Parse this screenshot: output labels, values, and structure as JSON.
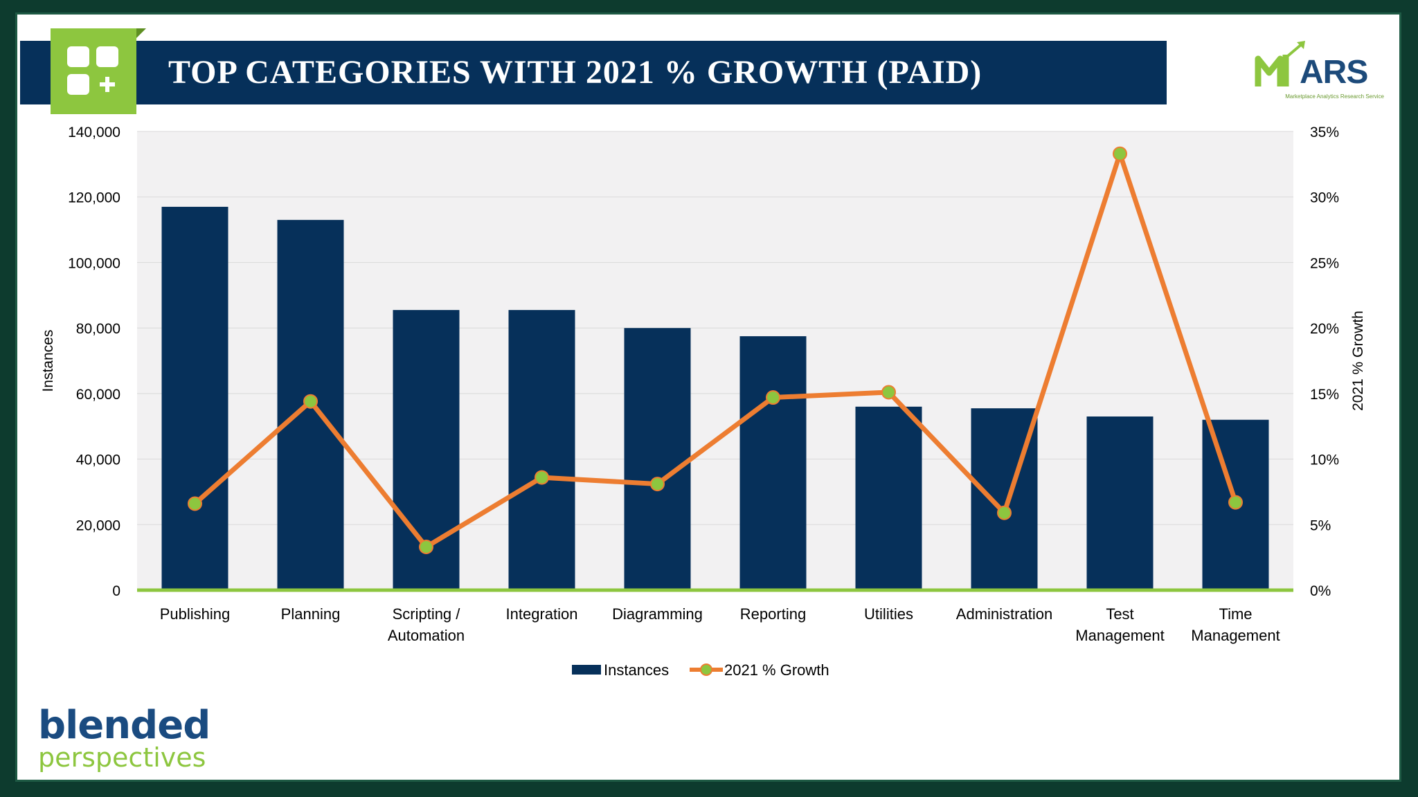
{
  "header": {
    "title": "TOP CATEGORIES WITH 2021 % GROWTH (PAID)",
    "icon": "grid-plus-icon"
  },
  "logos": {
    "mars_text": "ARS",
    "mars_subtitle": "Marketplace Analytics Research Service",
    "blended_line1": "blended",
    "blended_line2": "perspectives"
  },
  "colors": {
    "bar": "#06305a",
    "line": "#ed7d31",
    "marker": "#8dc63f",
    "baseline": "#8dc63f",
    "plot_bg": "#f2f1f2",
    "accent_green": "#8dc63f",
    "navy": "#06305a"
  },
  "chart_data": {
    "type": "bar",
    "categories": [
      "Publishing",
      "Planning",
      "Scripting / Automation",
      "Integration",
      "Diagramming",
      "Reporting",
      "Utilities",
      "Administration",
      "Test Management",
      "Time Management"
    ],
    "category_lines": [
      [
        "Publishing"
      ],
      [
        "Planning"
      ],
      [
        "Scripting /",
        "Automation"
      ],
      [
        "Integration"
      ],
      [
        "Diagramming"
      ],
      [
        "Reporting"
      ],
      [
        "Utilities"
      ],
      [
        "Administration"
      ],
      [
        "Test",
        "Management"
      ],
      [
        "Time",
        "Management"
      ]
    ],
    "series": [
      {
        "name": "Instances",
        "type": "bar",
        "axis": "left",
        "values": [
          117000,
          113000,
          85500,
          85500,
          80000,
          77500,
          56000,
          55500,
          53000,
          52000
        ]
      },
      {
        "name": "2021 % Growth",
        "type": "line",
        "axis": "right",
        "values": [
          0.066,
          0.144,
          0.033,
          0.086,
          0.081,
          0.147,
          0.151,
          0.059,
          0.333,
          0.067
        ]
      }
    ],
    "ylabel": "Instances",
    "y2label": "2021 % Growth",
    "ylim": [
      0,
      140000
    ],
    "y2lim": [
      0,
      0.35
    ],
    "yticks": [
      0,
      20000,
      40000,
      60000,
      80000,
      100000,
      120000,
      140000
    ],
    "yticklabels": [
      "0",
      "20,000",
      "40,000",
      "60,000",
      "80,000",
      "100,000",
      "120,000",
      "140,000"
    ],
    "y2ticklabels": [
      "0%",
      "5%",
      "10%",
      "15%",
      "20%",
      "25%",
      "30%",
      "35%"
    ],
    "legend_position": "bottom",
    "grid": true
  }
}
